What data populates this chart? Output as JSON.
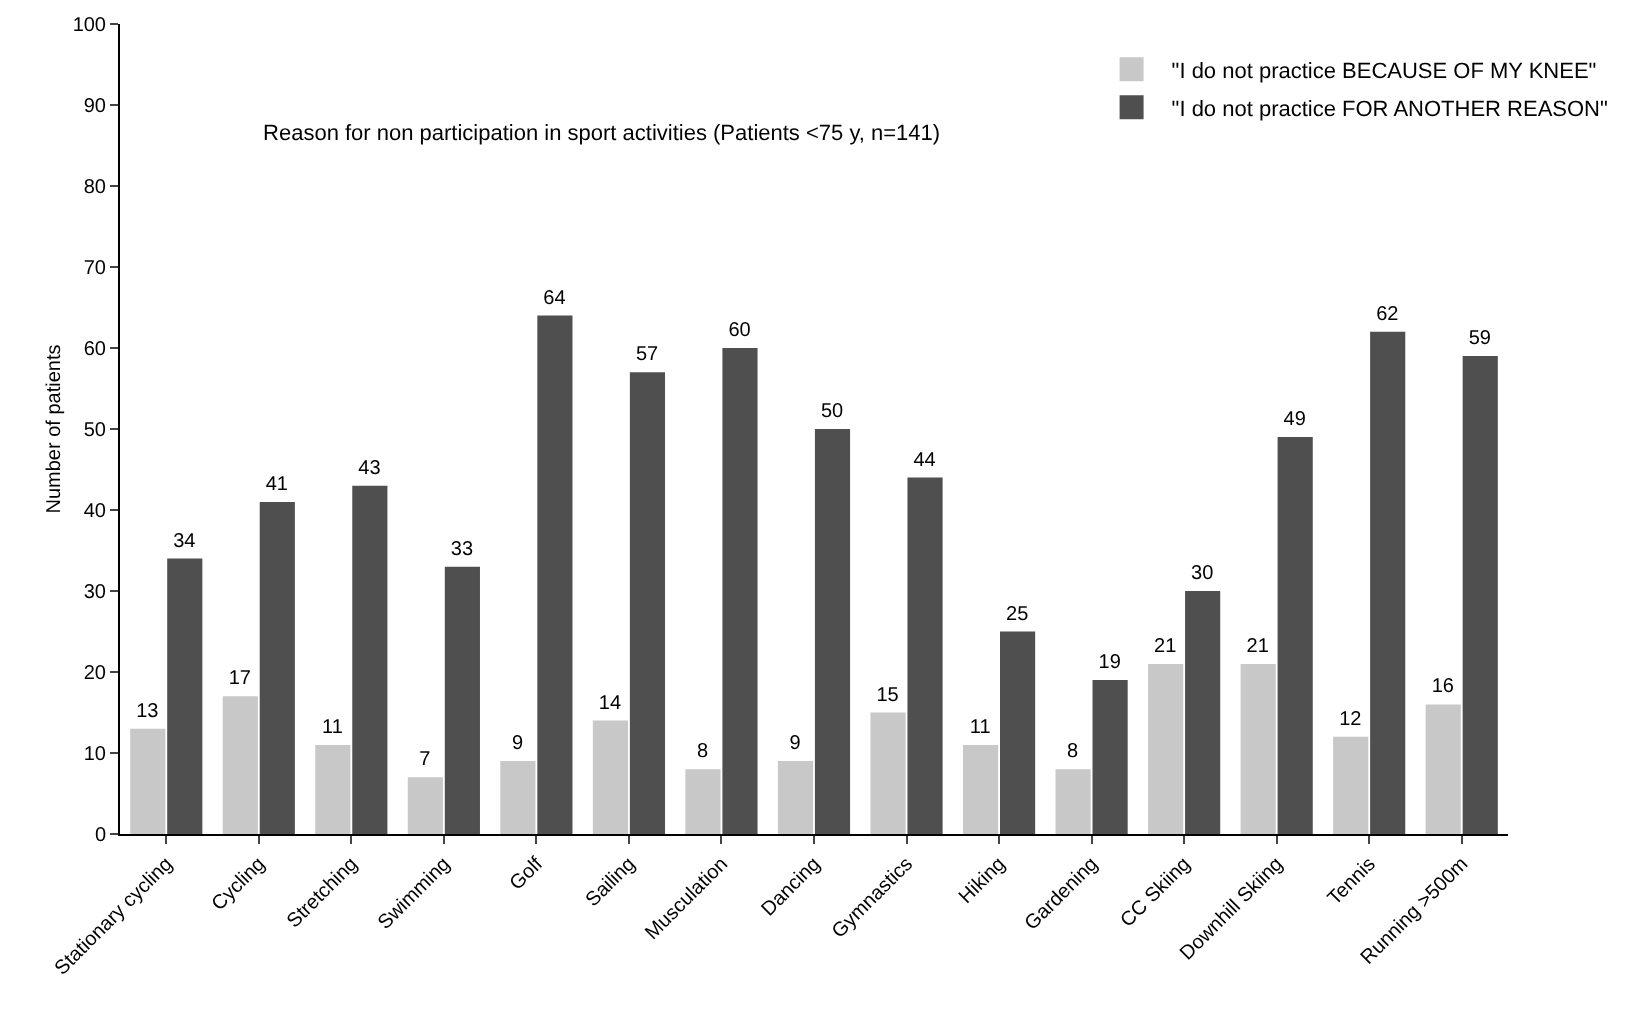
{
  "chart_data": {
    "type": "bar",
    "title": "Reason for non participation in sport activities (Patients <75 y, n=141)",
    "ylabel": "Number of patients",
    "categories": [
      "Stationary cycling",
      "Cycling",
      "Stretching",
      "Swimming",
      "Golf",
      "Sailing",
      "Musculation",
      "Dancing",
      "Gymnastics",
      "Hiking",
      "Gardening",
      "CC Skiing",
      "Downhill Skiing",
      "Tennis",
      "Running >500m"
    ],
    "series": [
      {
        "name": "\"I do not practice BECAUSE OF MY KNEE\"",
        "color": "#c8c8c8",
        "values": [
          13,
          17,
          11,
          7,
          9,
          14,
          8,
          9,
          15,
          11,
          8,
          21,
          21,
          12,
          16
        ]
      },
      {
        "name": "\"I do not practice FOR ANOTHER REASON\"",
        "color": "#4f4f4f",
        "values": [
          34,
          41,
          43,
          33,
          64,
          57,
          60,
          50,
          44,
          25,
          19,
          30,
          49,
          62,
          59
        ]
      }
    ],
    "ylim": [
      0,
      100
    ],
    "yticks": [
      0,
      10,
      20,
      30,
      40,
      50,
      60,
      70,
      80,
      90,
      100
    ],
    "grid": false,
    "legend": "top right",
    "data_labels": true
  }
}
